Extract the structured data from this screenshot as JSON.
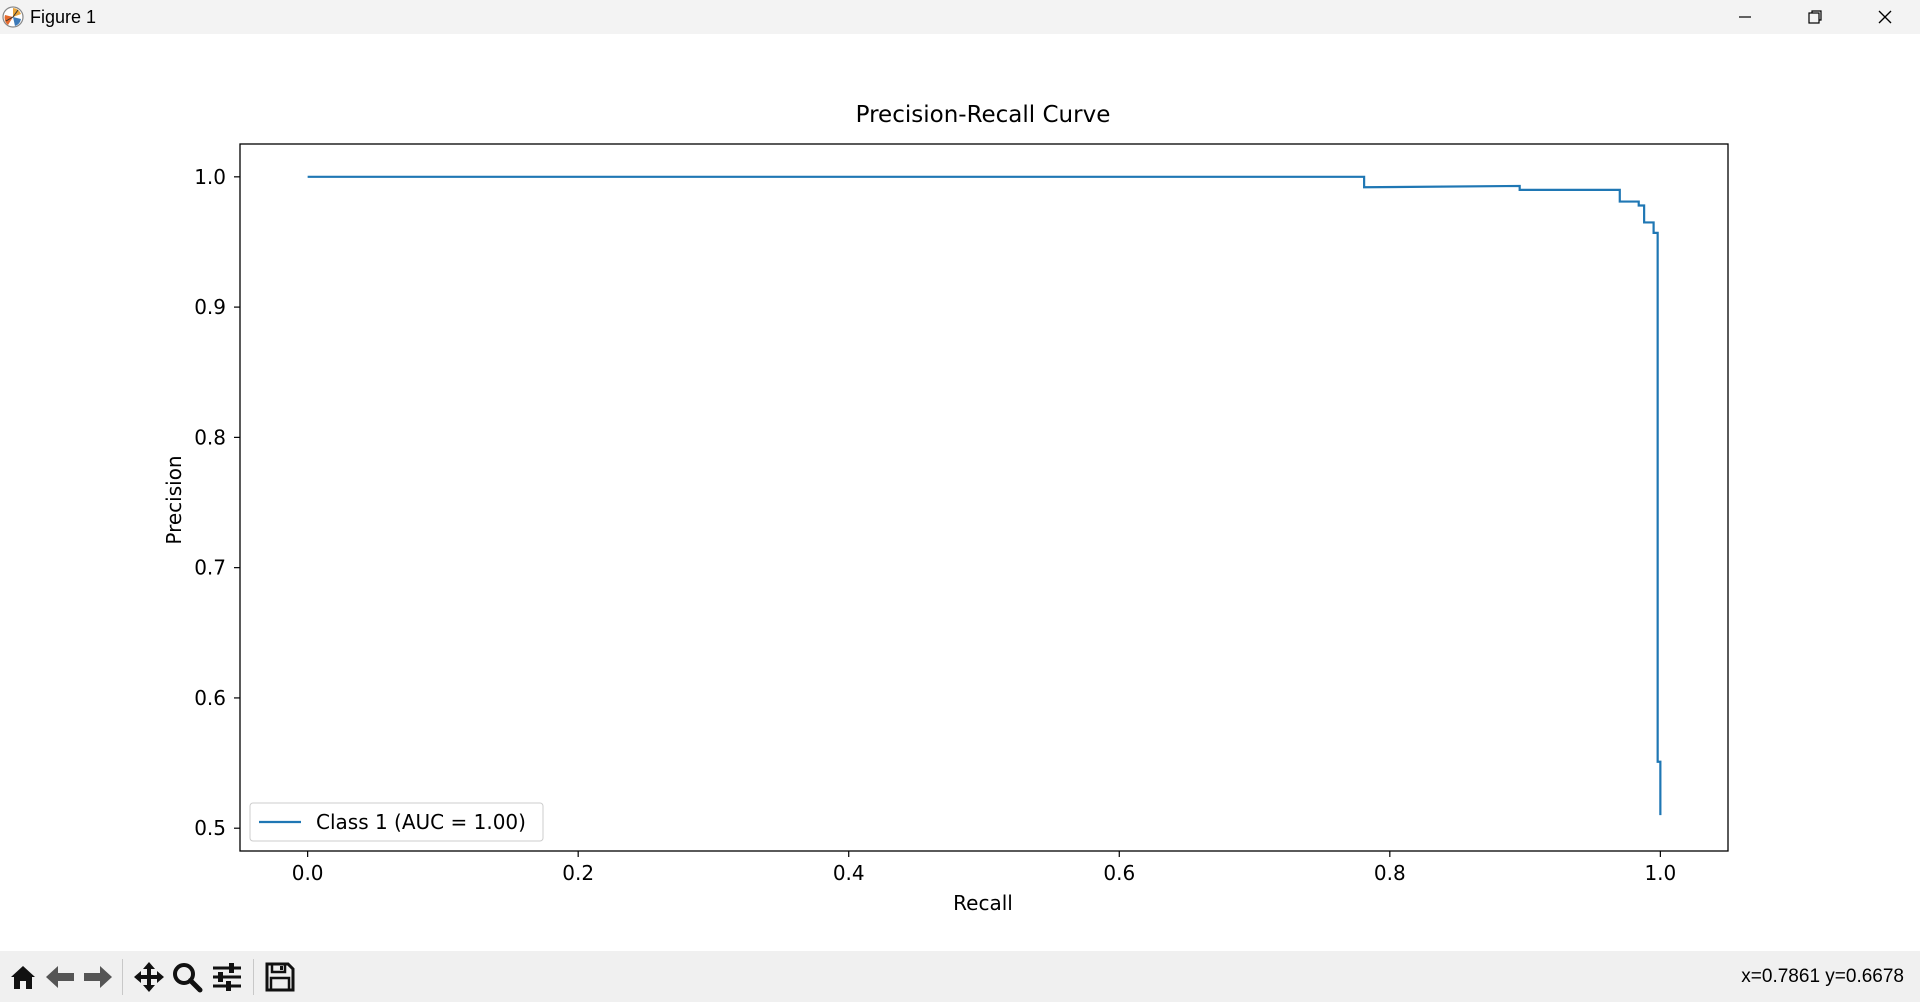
{
  "window": {
    "title": "Figure 1",
    "controls": [
      "minimize-icon",
      "restore-icon",
      "close-icon"
    ]
  },
  "toolbar": {
    "buttons": [
      {
        "name": "home-button",
        "icon": "home-icon"
      },
      {
        "name": "back-button",
        "icon": "arrow-left-icon"
      },
      {
        "name": "forward-button",
        "icon": "arrow-right-icon"
      },
      {
        "name": "pan-button",
        "icon": "move-icon"
      },
      {
        "name": "zoom-button",
        "icon": "magnifier-icon"
      },
      {
        "name": "configure-subplots-button",
        "icon": "sliders-icon"
      },
      {
        "name": "save-button",
        "icon": "floppy-disk-icon"
      }
    ],
    "coordinates": "x=0.7861 y=0.6678"
  },
  "chart_data": {
    "type": "line",
    "title": "Precision-Recall Curve",
    "xlabel": "Recall",
    "ylabel": "Precision",
    "xlim": [
      -0.05,
      1.05
    ],
    "ylim": [
      0.4825,
      1.0252
    ],
    "xticks": [
      0.0,
      0.2,
      0.4,
      0.6,
      0.8,
      1.0
    ],
    "xtick_labels": [
      "0.0",
      "0.2",
      "0.4",
      "0.6",
      "0.8",
      "1.0"
    ],
    "yticks": [
      0.5,
      0.6,
      0.7,
      0.8,
      0.9,
      1.0
    ],
    "ytick_labels": [
      "0.5",
      "0.6",
      "0.7",
      "0.8",
      "0.9",
      "1.0"
    ],
    "grid": false,
    "legend_position": "lower-left",
    "series": [
      {
        "name": "Class 1 (AUC = 1.00)",
        "color": "#1f77b4",
        "step": true,
        "x": [
          0.0,
          0.781,
          0.781,
          0.896,
          0.896,
          0.97,
          0.97,
          0.984,
          0.984,
          0.988,
          0.988,
          0.995,
          0.995,
          0.998,
          0.998,
          1.0,
          1.0
        ],
        "y": [
          1.0,
          1.0,
          0.992,
          0.993,
          0.99,
          0.99,
          0.981,
          0.981,
          0.978,
          0.978,
          0.965,
          0.965,
          0.957,
          0.957,
          0.551,
          0.551,
          0.51
        ]
      }
    ]
  }
}
